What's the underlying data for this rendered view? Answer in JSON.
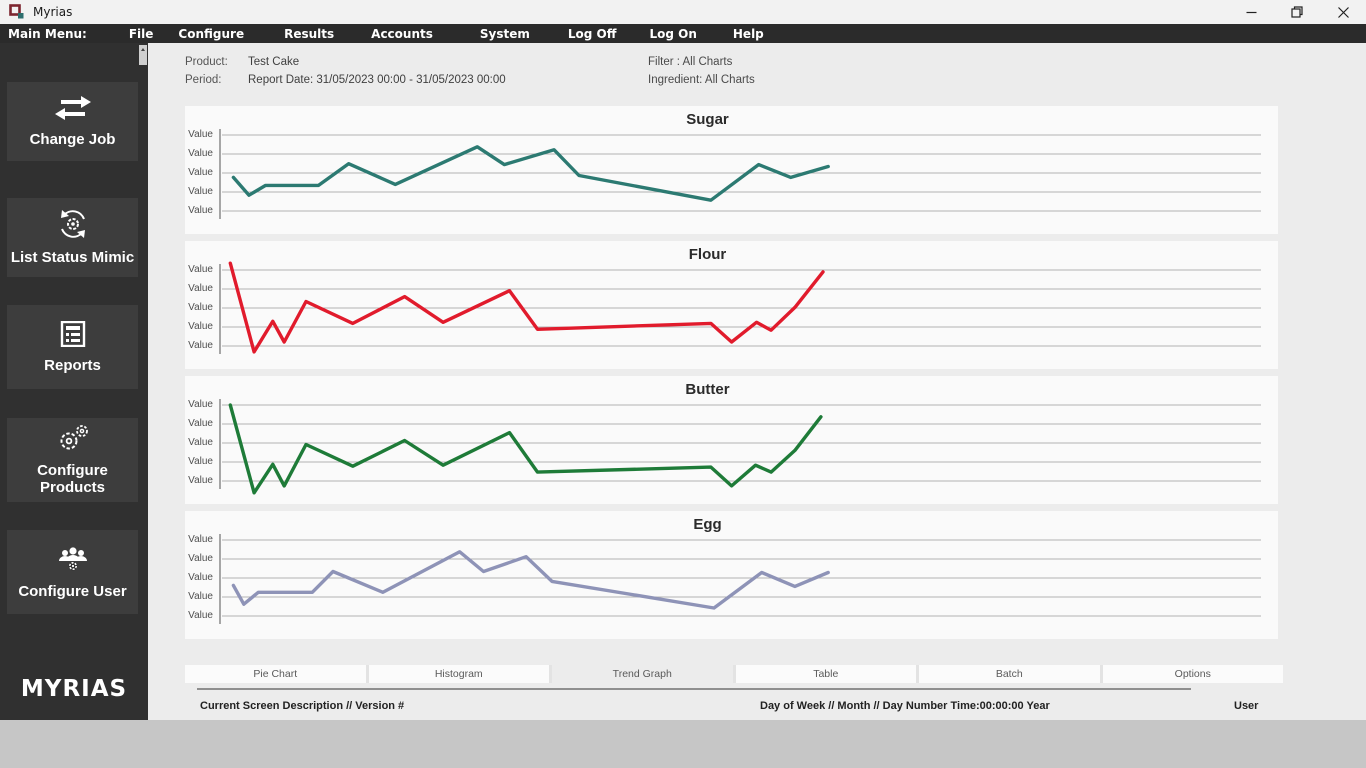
{
  "window": {
    "title": "Myrias",
    "controls": {
      "minimize": "minimize",
      "restore": "restore",
      "close": "close"
    }
  },
  "menu": {
    "items": [
      "Main Menu:",
      "File",
      "Configure",
      "Results",
      "Accounts",
      "System",
      "Log Off",
      "Log On",
      "Help"
    ]
  },
  "sidebar": {
    "buttons": [
      {
        "label": "Change Job",
        "icon": "swap-arrows-icon"
      },
      {
        "label": "List Status Mimic",
        "icon": "gear-sync-icon"
      },
      {
        "label": "Reports",
        "icon": "report-document-icon"
      },
      {
        "label": "Configure Products",
        "icon": "gears-icon"
      },
      {
        "label": "Configure User",
        "icon": "users-gear-icon"
      }
    ],
    "logo": "MYRIAS"
  },
  "report_header": {
    "product_label": "Product:",
    "product_value": "Test Cake",
    "period_label": "Period:",
    "period_value": "Report Date: 31/05/2023 00:00 - 31/05/2023 00:00",
    "filter_line": "Filter  : All Charts",
    "ingredient_line": "Ingredient: All Charts"
  },
  "chart_data": [
    {
      "type": "line",
      "title": "Sugar",
      "color": "#2c7a72",
      "ylabel_ticks": [
        "Value",
        "Value",
        "Value",
        "Value",
        "Value"
      ],
      "xlabel": "",
      "ylim_gridline_units": [
        0,
        4
      ],
      "grid": true,
      "points": [
        [
          0.01,
          1.77
        ],
        [
          0.025,
          0.83
        ],
        [
          0.041,
          1.35
        ],
        [
          0.092,
          1.35
        ],
        [
          0.121,
          2.49
        ],
        [
          0.166,
          1.4
        ],
        [
          0.245,
          3.38
        ],
        [
          0.271,
          2.44
        ],
        [
          0.319,
          3.22
        ],
        [
          0.343,
          1.87
        ],
        [
          0.47,
          0.57
        ],
        [
          0.516,
          2.44
        ],
        [
          0.547,
          1.77
        ],
        [
          0.583,
          2.34
        ]
      ]
    },
    {
      "type": "line",
      "title": "Flour",
      "color": "#e11b2c",
      "ylabel_ticks": [
        "Value",
        "Value",
        "Value",
        "Value",
        "Value"
      ],
      "xlabel": "",
      "ylim_gridline_units": [
        0,
        4
      ],
      "grid": true,
      "points": [
        [
          0.007,
          4.36
        ],
        [
          0.03,
          -0.31
        ],
        [
          0.048,
          1.3
        ],
        [
          0.059,
          0.21
        ],
        [
          0.08,
          2.34
        ],
        [
          0.125,
          1.19
        ],
        [
          0.175,
          2.6
        ],
        [
          0.212,
          1.25
        ],
        [
          0.276,
          2.91
        ],
        [
          0.303,
          0.88
        ],
        [
          0.47,
          1.19
        ],
        [
          0.49,
          0.21
        ],
        [
          0.514,
          1.25
        ],
        [
          0.528,
          0.83
        ],
        [
          0.551,
          2.03
        ],
        [
          0.578,
          3.9
        ]
      ]
    },
    {
      "type": "line",
      "title": "Butter",
      "color": "#1e7b38",
      "ylabel_ticks": [
        "Value",
        "Value",
        "Value",
        "Value",
        "Value"
      ],
      "xlabel": "",
      "ylim_gridline_units": [
        0,
        4
      ],
      "grid": true,
      "points": [
        [
          0.007,
          4.0
        ],
        [
          0.03,
          -0.62
        ],
        [
          0.048,
          0.88
        ],
        [
          0.059,
          -0.26
        ],
        [
          0.08,
          1.92
        ],
        [
          0.125,
          0.78
        ],
        [
          0.175,
          2.13
        ],
        [
          0.212,
          0.83
        ],
        [
          0.276,
          2.55
        ],
        [
          0.303,
          0.47
        ],
        [
          0.47,
          0.73
        ],
        [
          0.49,
          -0.26
        ],
        [
          0.513,
          0.83
        ],
        [
          0.528,
          0.47
        ],
        [
          0.551,
          1.61
        ],
        [
          0.576,
          3.38
        ]
      ]
    },
    {
      "type": "line",
      "title": "Egg",
      "color": "#8e93b7",
      "ylabel_ticks": [
        "Value",
        "Value",
        "Value",
        "Value",
        "Value"
      ],
      "xlabel": "",
      "ylim_gridline_units": [
        0,
        4
      ],
      "grid": true,
      "points": [
        [
          0.01,
          1.61
        ],
        [
          0.02,
          0.62
        ],
        [
          0.034,
          1.25
        ],
        [
          0.086,
          1.25
        ],
        [
          0.106,
          2.34
        ],
        [
          0.154,
          1.25
        ],
        [
          0.228,
          3.38
        ],
        [
          0.251,
          2.34
        ],
        [
          0.292,
          3.12
        ],
        [
          0.317,
          1.82
        ],
        [
          0.473,
          0.42
        ],
        [
          0.519,
          2.29
        ],
        [
          0.551,
          1.56
        ],
        [
          0.583,
          2.29
        ]
      ]
    }
  ],
  "tabs": [
    {
      "label": "Pie Chart",
      "active": false
    },
    {
      "label": "Histogram",
      "active": false
    },
    {
      "label": "Trend Graph",
      "active": true
    },
    {
      "label": "Table",
      "active": false
    },
    {
      "label": "Batch",
      "active": false
    },
    {
      "label": "Options",
      "active": false
    }
  ],
  "statusbar": {
    "left": "Current Screen Description // Version #",
    "center": "Day of Week // Month // Day Number Time:00:00:00 Year",
    "right": "User"
  }
}
